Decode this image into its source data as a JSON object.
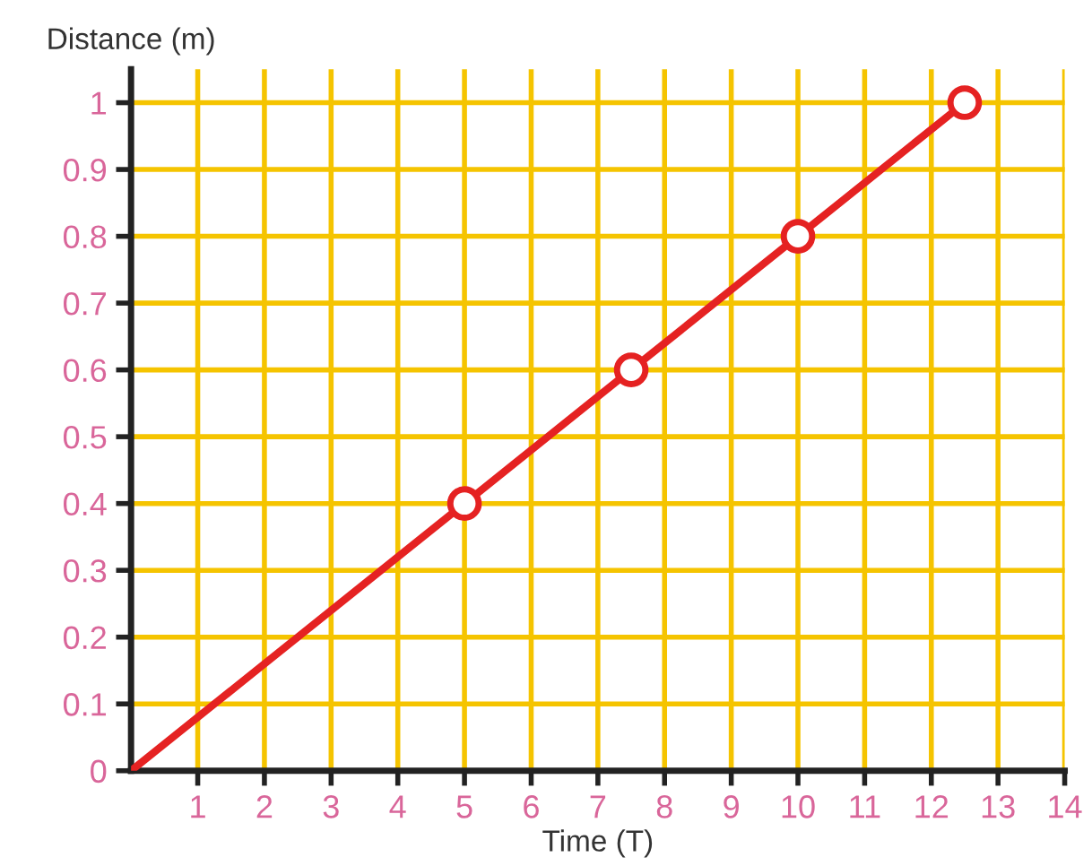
{
  "chart_data": {
    "type": "line",
    "xlabel": "Time (T)",
    "ylabel": "Distance (m)",
    "series": [
      {
        "color": "#e52222",
        "x": [
          0,
          5,
          7.5,
          10,
          12.5
        ],
        "values": [
          0,
          0.4,
          0.6,
          0.8,
          1.0
        ],
        "marker": "none"
      },
      {
        "type": "scatter",
        "color": "#e52222",
        "x": [
          5,
          7.5,
          10,
          12.5
        ],
        "values": [
          0.4,
          0.6,
          0.8,
          1.0
        ],
        "marker": "circle"
      }
    ],
    "xlim": [
      0,
      14
    ],
    "xticks": [
      1,
      2,
      3,
      4,
      5,
      6,
      7,
      8,
      9,
      10,
      11,
      12,
      13,
      14
    ],
    "ylim": [
      0,
      1.05
    ],
    "yticks": [
      0,
      0.1,
      0.2,
      0.3,
      0.4,
      0.5,
      0.6,
      0.7,
      0.8,
      0.9,
      1
    ],
    "grid": true,
    "legend": false,
    "line_style": "solid"
  }
}
